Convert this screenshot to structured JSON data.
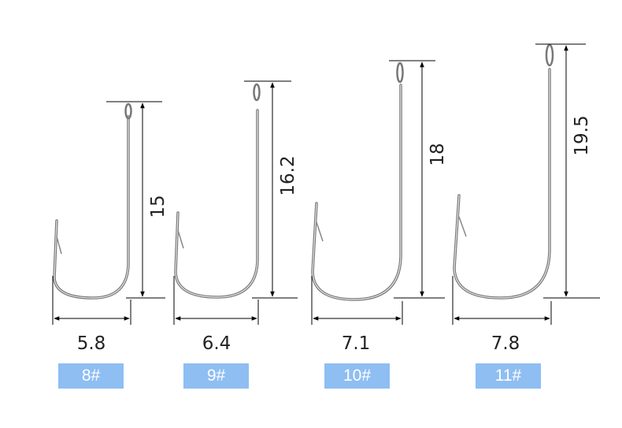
{
  "hooks": [
    {
      "size": "8#",
      "width": "5.8",
      "length": "15"
    },
    {
      "size": "9#",
      "width": "6.4",
      "length": "16.2"
    },
    {
      "size": "10#",
      "width": "7.1",
      "length": "18"
    },
    {
      "size": "11#",
      "width": "7.8",
      "length": "19.5"
    }
  ],
  "colors": {
    "badge": "#8ebef2",
    "badge_text": "#ffffff",
    "line": "#000000",
    "steel": "#bdbdbd"
  }
}
